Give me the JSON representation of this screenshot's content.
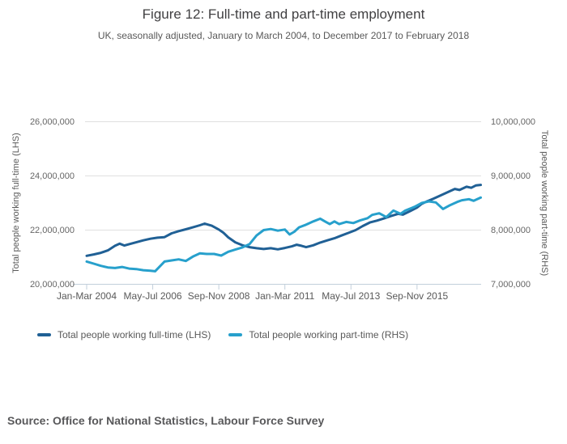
{
  "header": {
    "title": "Figure 12: Full-time and part-time employment",
    "subtitle": "UK, seasonally adjusted, January to March 2004, to December 2017 to February 2018"
  },
  "source": {
    "label": "Source: Office for National Statistics, Labour Force Survey"
  },
  "colors": {
    "full_time_line": "#206095",
    "part_time_line": "#27a0cc",
    "gridline": "#e0e0e0",
    "axis_line": "#c2cfdb",
    "tick_text": "#666666"
  },
  "legend": {
    "items": [
      {
        "label": "Total people working full-time (LHS)",
        "color": "#206095"
      },
      {
        "label": "Total people working part-time (RHS)",
        "color": "#27a0cc"
      }
    ]
  },
  "chart_data": {
    "type": "line",
    "title": "Figure 12: Full-time and part-time employment",
    "subtitle": "UK, seasonally adjusted, January to March 2004, to December 2017 to February 2018",
    "units": "millions of people; x = months since Jan-Mar 2004 rolling three-month period",
    "grid": "horizontal only",
    "legend_position": "bottom-left",
    "x_axis": {
      "tick_labels": [
        "Jan-Mar 2004",
        "May-Jul 2006",
        "Sep-Nov 2008",
        "Jan-Mar 2011",
        "May-Jul 2013",
        "Sep-Nov 2015"
      ],
      "tick_months": [
        0,
        28,
        56,
        84,
        112,
        140
      ],
      "range_months": [
        0,
        167
      ]
    },
    "y_axis_left": {
      "label": "Total people working full-time (LHS)",
      "tick_labels": [
        "20,000,000",
        "22,000,000",
        "24,000,000",
        "26,000,000"
      ],
      "tick_values_millions": [
        20,
        22,
        24,
        26
      ],
      "range_millions": [
        20,
        26
      ]
    },
    "y_axis_right": {
      "label": "Total people working part-time (RHS)",
      "tick_labels": [
        "7,000,000",
        "8,000,000",
        "9,000,000",
        "10,000,000"
      ],
      "tick_values_millions": [
        7,
        8,
        9,
        10
      ],
      "range_millions": [
        7,
        10
      ]
    },
    "series": [
      {
        "name": "Total people working full-time (LHS)",
        "axis": "left",
        "color": "#206095",
        "points": [
          [
            0,
            21.05
          ],
          [
            3,
            21.1
          ],
          [
            6,
            21.16
          ],
          [
            9,
            21.25
          ],
          [
            12,
            21.42
          ],
          [
            14,
            21.5
          ],
          [
            16,
            21.43
          ],
          [
            18,
            21.48
          ],
          [
            21,
            21.55
          ],
          [
            24,
            21.62
          ],
          [
            27,
            21.68
          ],
          [
            30,
            21.72
          ],
          [
            33,
            21.74
          ],
          [
            36,
            21.88
          ],
          [
            39,
            21.96
          ],
          [
            42,
            22.03
          ],
          [
            45,
            22.1
          ],
          [
            48,
            22.18
          ],
          [
            50,
            22.24
          ],
          [
            53,
            22.16
          ],
          [
            56,
            22.02
          ],
          [
            58,
            21.9
          ],
          [
            60,
            21.73
          ],
          [
            63,
            21.55
          ],
          [
            66,
            21.44
          ],
          [
            69,
            21.37
          ],
          [
            72,
            21.33
          ],
          [
            75,
            21.3
          ],
          [
            78,
            21.33
          ],
          [
            81,
            21.29
          ],
          [
            84,
            21.34
          ],
          [
            87,
            21.4
          ],
          [
            89,
            21.46
          ],
          [
            91,
            21.42
          ],
          [
            93,
            21.37
          ],
          [
            96,
            21.44
          ],
          [
            99,
            21.54
          ],
          [
            102,
            21.62
          ],
          [
            105,
            21.7
          ],
          [
            108,
            21.8
          ],
          [
            111,
            21.9
          ],
          [
            114,
            22.0
          ],
          [
            117,
            22.15
          ],
          [
            120,
            22.28
          ],
          [
            123,
            22.35
          ],
          [
            126,
            22.43
          ],
          [
            129,
            22.52
          ],
          [
            132,
            22.6
          ],
          [
            134,
            22.57
          ],
          [
            137,
            22.7
          ],
          [
            140,
            22.83
          ],
          [
            142,
            22.97
          ],
          [
            144,
            23.05
          ],
          [
            147,
            23.16
          ],
          [
            150,
            23.28
          ],
          [
            153,
            23.4
          ],
          [
            156,
            23.52
          ],
          [
            158,
            23.48
          ],
          [
            161,
            23.6
          ],
          [
            163,
            23.56
          ],
          [
            165,
            23.65
          ],
          [
            167,
            23.67
          ]
        ]
      },
      {
        "name": "Total people working part-time (RHS)",
        "axis": "right",
        "color": "#27a0cc",
        "points": [
          [
            0,
            7.42
          ],
          [
            3,
            7.38
          ],
          [
            6,
            7.34
          ],
          [
            9,
            7.31
          ],
          [
            12,
            7.3
          ],
          [
            15,
            7.32
          ],
          [
            18,
            7.29
          ],
          [
            21,
            7.28
          ],
          [
            24,
            7.26
          ],
          [
            27,
            7.25
          ],
          [
            29,
            7.24
          ],
          [
            31,
            7.33
          ],
          [
            33,
            7.42
          ],
          [
            36,
            7.44
          ],
          [
            39,
            7.46
          ],
          [
            42,
            7.43
          ],
          [
            45,
            7.51
          ],
          [
            48,
            7.57
          ],
          [
            51,
            7.56
          ],
          [
            54,
            7.56
          ],
          [
            57,
            7.53
          ],
          [
            60,
            7.6
          ],
          [
            63,
            7.64
          ],
          [
            66,
            7.68
          ],
          [
            69,
            7.74
          ],
          [
            72,
            7.9
          ],
          [
            75,
            8.0
          ],
          [
            78,
            8.02
          ],
          [
            81,
            7.99
          ],
          [
            84,
            8.01
          ],
          [
            86,
            7.92
          ],
          [
            88,
            7.97
          ],
          [
            90,
            8.05
          ],
          [
            93,
            8.1
          ],
          [
            96,
            8.16
          ],
          [
            99,
            8.21
          ],
          [
            101,
            8.16
          ],
          [
            103,
            8.11
          ],
          [
            105,
            8.16
          ],
          [
            107,
            8.11
          ],
          [
            110,
            8.15
          ],
          [
            113,
            8.13
          ],
          [
            116,
            8.18
          ],
          [
            119,
            8.22
          ],
          [
            121,
            8.28
          ],
          [
            124,
            8.31
          ],
          [
            127,
            8.24
          ],
          [
            130,
            8.36
          ],
          [
            133,
            8.3
          ],
          [
            135,
            8.36
          ],
          [
            139,
            8.43
          ],
          [
            142,
            8.5
          ],
          [
            145,
            8.53
          ],
          [
            148,
            8.51
          ],
          [
            151,
            8.39
          ],
          [
            154,
            8.46
          ],
          [
            157,
            8.52
          ],
          [
            159,
            8.55
          ],
          [
            162,
            8.57
          ],
          [
            164,
            8.54
          ],
          [
            167,
            8.6
          ]
        ]
      }
    ]
  }
}
